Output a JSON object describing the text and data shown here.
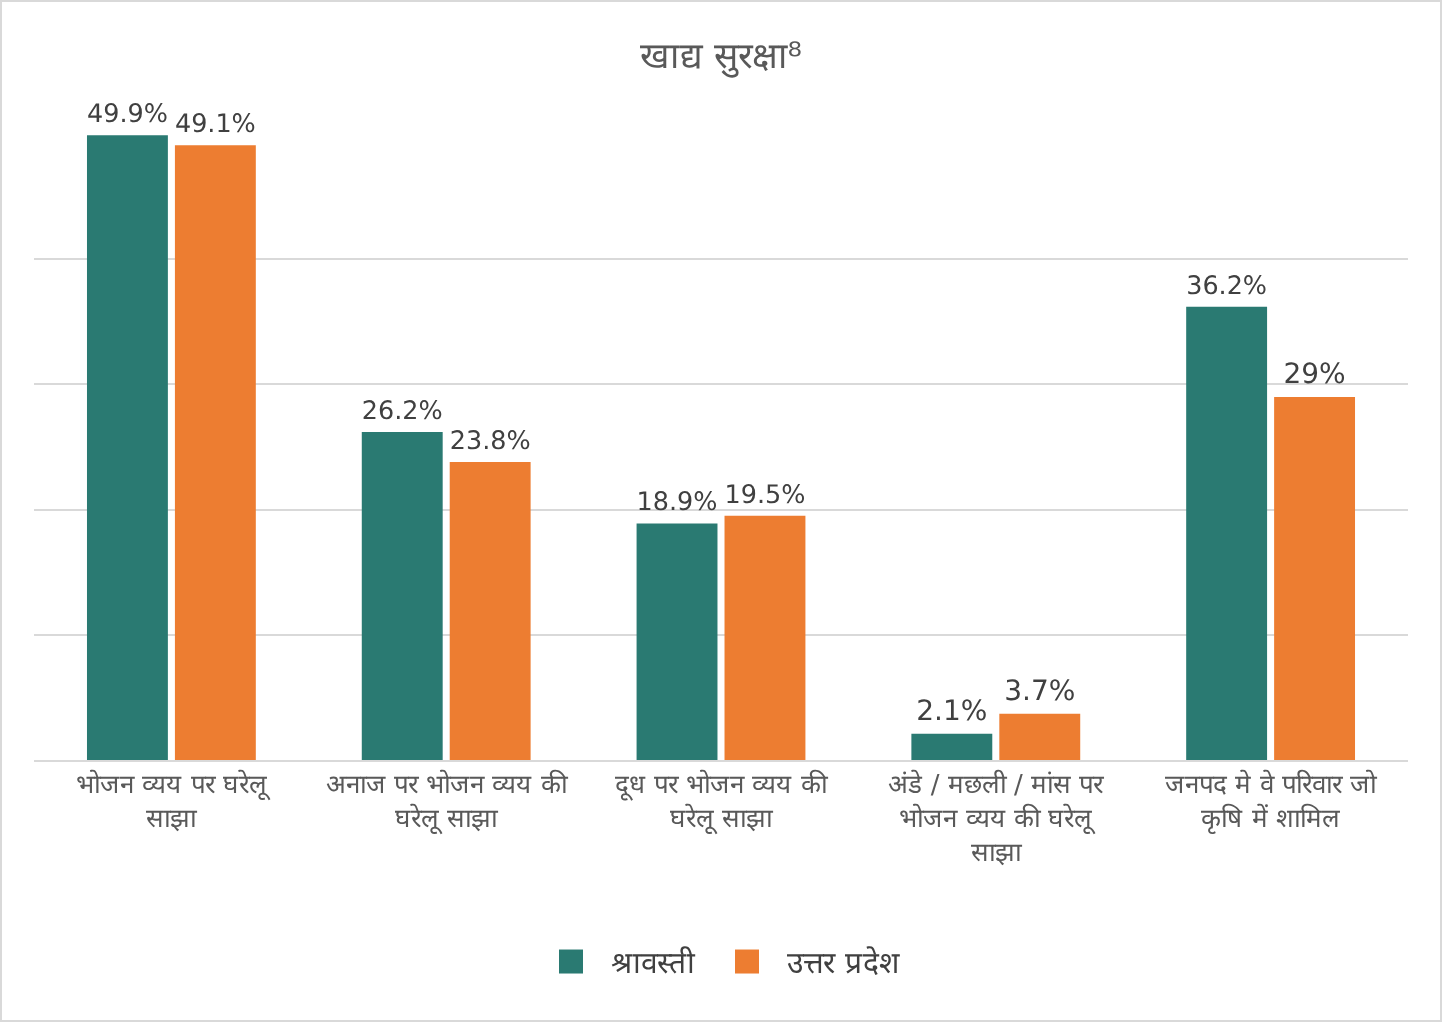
{
  "chart_data": {
    "type": "bar",
    "title": "खाद्य सुरक्षा⁸",
    "categories": [
      "भोजन व्यय पर घरेलू साझा",
      "अनाज पर भोजन व्यय की घरेलू साझा",
      "दूध पर भोजन व्यय की घरेलू साझा",
      "अंडे / मछली / मांस पर भोजन व्यय की घरेलू साझा",
      "जनपद मे वे परिवार जो कृषि में शामिल"
    ],
    "series": [
      {
        "name": "श्रावस्ती",
        "color": "#2a7a72",
        "values": [
          49.9,
          26.2,
          18.9,
          2.1,
          36.2
        ],
        "value_labels": [
          "49.9%",
          "26.2%",
          "18.9%",
          "2.1%",
          "36.2%"
        ]
      },
      {
        "name": "उत्तर प्रदेश",
        "color": "#ed7d31",
        "values": [
          49.1,
          23.8,
          19.5,
          3.7,
          29
        ],
        "value_labels": [
          "49.1%",
          "23.8%",
          "19.5%",
          "3.7%",
          "29%"
        ]
      }
    ],
    "ylim": [
      0,
      50
    ],
    "yticks": [
      {
        "value": 10,
        "label": null
      },
      {
        "value": 20,
        "label": null
      },
      {
        "value": 30,
        "label": null
      },
      {
        "value": 40,
        "label": null
      }
    ],
    "tick_labels": "x",
    "grid": "y",
    "legend": "bottom"
  }
}
